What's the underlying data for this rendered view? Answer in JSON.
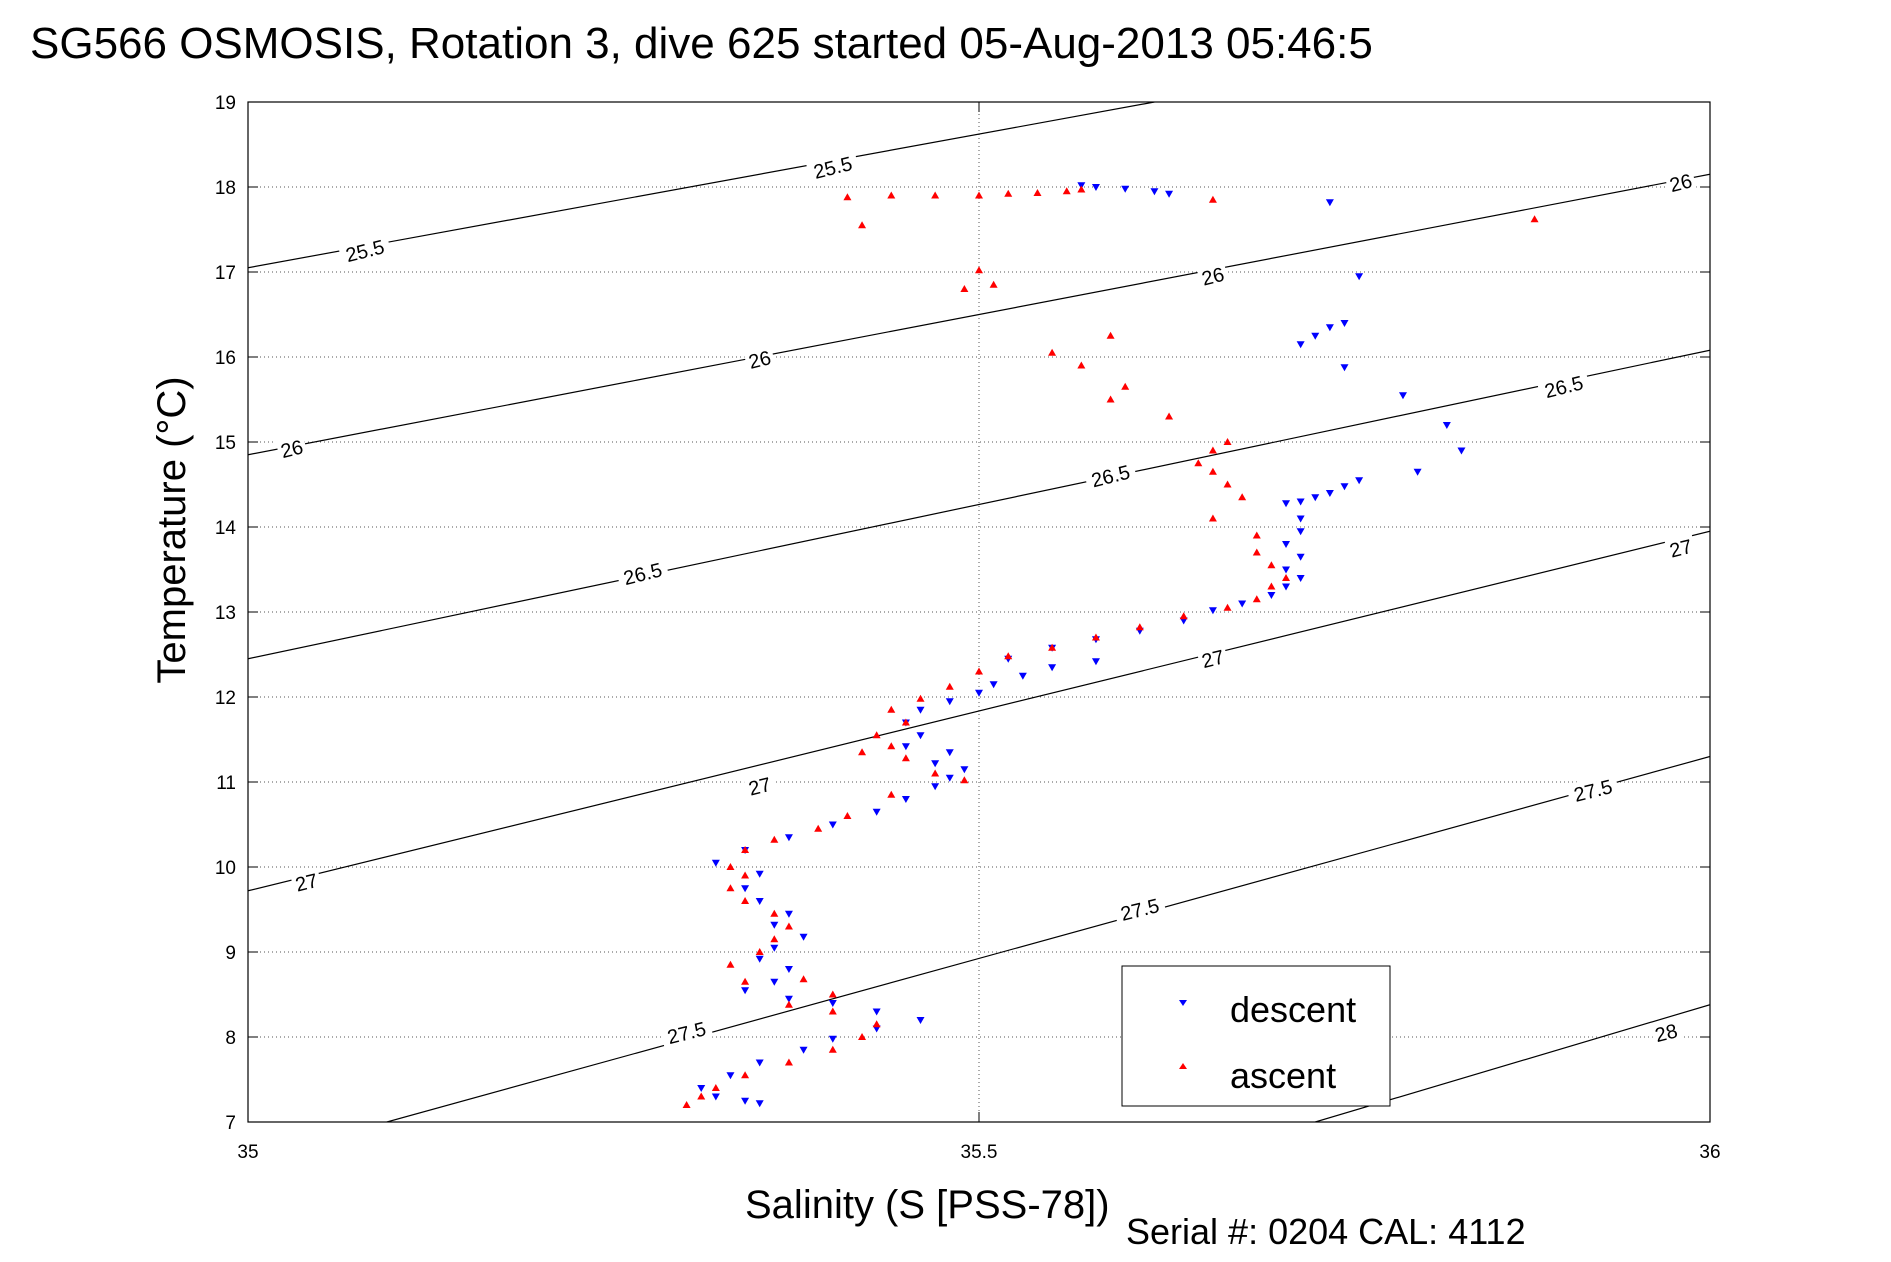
{
  "chart_data": {
    "type": "scatter",
    "title": "SG566 OSMOSIS, Rotation 3, dive 625 started 05-Aug-2013 05:46:5",
    "xlabel": "Salinity (S [PSS-78])",
    "ylabel": "Temperature (°C)",
    "xlim": [
      35,
      36
    ],
    "ylim": [
      7,
      19
    ],
    "x_ticks": [
      "35",
      "35.5",
      "36"
    ],
    "y_ticks": [
      "7",
      "8",
      "9",
      "10",
      "11",
      "12",
      "13",
      "14",
      "15",
      "16",
      "17",
      "18",
      "19"
    ],
    "grid": true,
    "legend_position": "bottom-right",
    "footer": "Serial #: 0204  CAL: 4112",
    "density_contours": [
      {
        "label": "25.5",
        "points": [
          [
            35,
            17.05
          ],
          [
            35.62,
            19.0
          ]
        ]
      },
      {
        "label": "26",
        "points": [
          [
            35,
            14.85
          ],
          [
            36,
            18.15
          ]
        ]
      },
      {
        "label": "26.5",
        "points": [
          [
            35,
            12.45
          ],
          [
            36,
            16.08
          ]
        ]
      },
      {
        "label": "27",
        "points": [
          [
            35,
            9.72
          ],
          [
            36,
            13.95
          ]
        ]
      },
      {
        "label": "27.5",
        "points": [
          [
            35.095,
            7.0
          ],
          [
            36,
            11.3
          ]
        ]
      },
      {
        "label": "28",
        "points": [
          [
            35.73,
            7.0
          ],
          [
            36,
            8.38
          ]
        ]
      }
    ],
    "contour_label_positions": [
      {
        "text": "25.5",
        "x": 35.08,
        "y": 17.25
      },
      {
        "text": "25.5",
        "x": 35.4,
        "y": 18.23
      },
      {
        "text": "26",
        "x": 35.03,
        "y": 14.92
      },
      {
        "text": "26",
        "x": 35.35,
        "y": 15.97
      },
      {
        "text": "26",
        "x": 35.66,
        "y": 16.95
      },
      {
        "text": "26",
        "x": 35.98,
        "y": 18.05
      },
      {
        "text": "26.5",
        "x": 35.27,
        "y": 13.45
      },
      {
        "text": "26.5",
        "x": 35.59,
        "y": 14.6
      },
      {
        "text": "26.5",
        "x": 35.9,
        "y": 15.65
      },
      {
        "text": "27",
        "x": 35.04,
        "y": 9.82
      },
      {
        "text": "27",
        "x": 35.35,
        "y": 10.95
      },
      {
        "text": "27",
        "x": 35.66,
        "y": 12.45
      },
      {
        "text": "27",
        "x": 35.98,
        "y": 13.75
      },
      {
        "text": "27.5",
        "x": 35.3,
        "y": 8.05
      },
      {
        "text": "27.5",
        "x": 35.61,
        "y": 9.5
      },
      {
        "text": "27.5",
        "x": 35.92,
        "y": 10.9
      },
      {
        "text": "28",
        "x": 35.97,
        "y": 8.05
      }
    ],
    "series": [
      {
        "name": "descent",
        "color": "#0000ff",
        "marker": "triangle-down",
        "points": [
          [
            35.57,
            18.02
          ],
          [
            35.58,
            18.0
          ],
          [
            35.6,
            17.98
          ],
          [
            35.62,
            17.95
          ],
          [
            35.63,
            17.92
          ],
          [
            35.74,
            17.82
          ],
          [
            35.76,
            16.95
          ],
          [
            35.75,
            16.4
          ],
          [
            35.74,
            16.35
          ],
          [
            35.73,
            16.25
          ],
          [
            35.72,
            16.15
          ],
          [
            35.75,
            15.88
          ],
          [
            35.79,
            15.55
          ],
          [
            35.82,
            15.2
          ],
          [
            35.83,
            14.9
          ],
          [
            35.8,
            14.65
          ],
          [
            35.76,
            14.55
          ],
          [
            35.75,
            14.48
          ],
          [
            35.74,
            14.4
          ],
          [
            35.73,
            14.35
          ],
          [
            35.72,
            14.3
          ],
          [
            35.71,
            14.28
          ],
          [
            35.72,
            14.1
          ],
          [
            35.72,
            13.95
          ],
          [
            35.71,
            13.8
          ],
          [
            35.72,
            13.65
          ],
          [
            35.71,
            13.5
          ],
          [
            35.72,
            13.4
          ],
          [
            35.71,
            13.3
          ],
          [
            35.7,
            13.2
          ],
          [
            35.68,
            13.1
          ],
          [
            35.66,
            13.02
          ],
          [
            35.64,
            12.9
          ],
          [
            35.61,
            12.78
          ],
          [
            35.58,
            12.68
          ],
          [
            35.55,
            12.58
          ],
          [
            35.52,
            12.45
          ],
          [
            35.58,
            12.42
          ],
          [
            35.55,
            12.35
          ],
          [
            35.53,
            12.25
          ],
          [
            35.51,
            12.15
          ],
          [
            35.5,
            12.05
          ],
          [
            35.48,
            11.95
          ],
          [
            35.46,
            11.85
          ],
          [
            35.45,
            11.7
          ],
          [
            35.46,
            11.55
          ],
          [
            35.45,
            11.42
          ],
          [
            35.48,
            11.35
          ],
          [
            35.47,
            11.22
          ],
          [
            35.49,
            11.15
          ],
          [
            35.48,
            11.05
          ],
          [
            35.47,
            10.95
          ],
          [
            35.45,
            10.8
          ],
          [
            35.43,
            10.65
          ],
          [
            35.4,
            10.5
          ],
          [
            35.37,
            10.35
          ],
          [
            35.34,
            10.2
          ],
          [
            35.32,
            10.05
          ],
          [
            35.35,
            9.92
          ],
          [
            35.34,
            9.75
          ],
          [
            35.35,
            9.6
          ],
          [
            35.37,
            9.45
          ],
          [
            35.36,
            9.32
          ],
          [
            35.38,
            9.18
          ],
          [
            35.36,
            9.05
          ],
          [
            35.35,
            8.92
          ],
          [
            35.37,
            8.8
          ],
          [
            35.36,
            8.65
          ],
          [
            35.34,
            8.55
          ],
          [
            35.37,
            8.45
          ],
          [
            35.4,
            8.4
          ],
          [
            35.43,
            8.3
          ],
          [
            35.46,
            8.2
          ],
          [
            35.43,
            8.1
          ],
          [
            35.4,
            7.98
          ],
          [
            35.38,
            7.85
          ],
          [
            35.35,
            7.7
          ],
          [
            35.33,
            7.55
          ],
          [
            35.31,
            7.4
          ],
          [
            35.32,
            7.3
          ],
          [
            35.34,
            7.25
          ],
          [
            35.35,
            7.22
          ]
        ]
      },
      {
        "name": "ascent",
        "color": "#ff0000",
        "marker": "triangle-up",
        "points": [
          [
            35.41,
            17.88
          ],
          [
            35.42,
            17.55
          ],
          [
            35.44,
            17.9
          ],
          [
            35.47,
            17.9
          ],
          [
            35.5,
            17.9
          ],
          [
            35.52,
            17.92
          ],
          [
            35.54,
            17.93
          ],
          [
            35.56,
            17.95
          ],
          [
            35.57,
            17.97
          ],
          [
            35.66,
            17.85
          ],
          [
            35.88,
            17.62
          ],
          [
            35.5,
            17.02
          ],
          [
            35.49,
            16.8
          ],
          [
            35.51,
            16.85
          ],
          [
            35.59,
            16.25
          ],
          [
            35.55,
            16.05
          ],
          [
            35.57,
            15.9
          ],
          [
            35.6,
            15.65
          ],
          [
            35.59,
            15.5
          ],
          [
            35.63,
            15.3
          ],
          [
            35.67,
            15.0
          ],
          [
            35.66,
            14.9
          ],
          [
            35.65,
            14.75
          ],
          [
            35.66,
            14.65
          ],
          [
            35.67,
            14.5
          ],
          [
            35.68,
            14.35
          ],
          [
            35.66,
            14.1
          ],
          [
            35.69,
            13.9
          ],
          [
            35.69,
            13.7
          ],
          [
            35.7,
            13.55
          ],
          [
            35.71,
            13.4
          ],
          [
            35.7,
            13.3
          ],
          [
            35.69,
            13.15
          ],
          [
            35.67,
            13.05
          ],
          [
            35.64,
            12.95
          ],
          [
            35.61,
            12.82
          ],
          [
            35.58,
            12.7
          ],
          [
            35.55,
            12.58
          ],
          [
            35.52,
            12.48
          ],
          [
            35.5,
            12.3
          ],
          [
            35.48,
            12.12
          ],
          [
            35.46,
            11.98
          ],
          [
            35.44,
            11.85
          ],
          [
            35.45,
            11.7
          ],
          [
            35.43,
            11.55
          ],
          [
            35.44,
            11.42
          ],
          [
            35.42,
            11.35
          ],
          [
            35.45,
            11.28
          ],
          [
            35.47,
            11.1
          ],
          [
            35.49,
            11.02
          ],
          [
            35.44,
            10.85
          ],
          [
            35.41,
            10.6
          ],
          [
            35.39,
            10.45
          ],
          [
            35.36,
            10.32
          ],
          [
            35.34,
            10.2
          ],
          [
            35.33,
            10.0
          ],
          [
            35.34,
            9.9
          ],
          [
            35.33,
            9.75
          ],
          [
            35.34,
            9.6
          ],
          [
            35.36,
            9.45
          ],
          [
            35.37,
            9.3
          ],
          [
            35.36,
            9.15
          ],
          [
            35.35,
            9.0
          ],
          [
            35.33,
            8.85
          ],
          [
            35.34,
            8.65
          ],
          [
            35.38,
            8.68
          ],
          [
            35.4,
            8.5
          ],
          [
            35.37,
            8.38
          ],
          [
            35.4,
            8.3
          ],
          [
            35.43,
            8.15
          ],
          [
            35.42,
            8.0
          ],
          [
            35.4,
            7.85
          ],
          [
            35.37,
            7.7
          ],
          [
            35.34,
            7.55
          ],
          [
            35.32,
            7.4
          ],
          [
            35.31,
            7.3
          ],
          [
            35.3,
            7.2
          ]
        ]
      }
    ]
  }
}
